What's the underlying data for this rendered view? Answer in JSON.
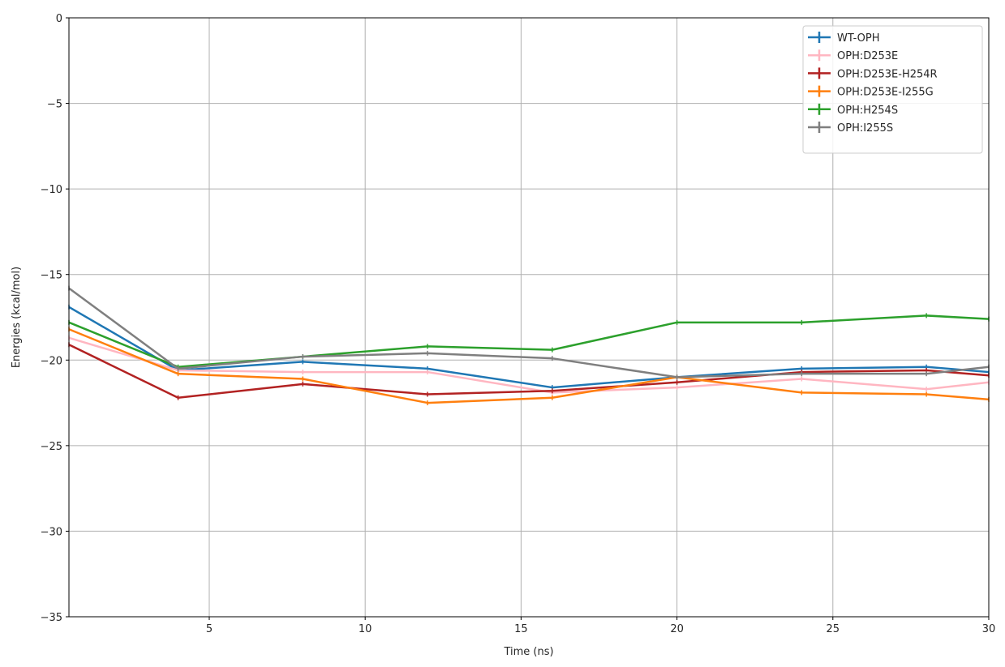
{
  "chart_data": {
    "type": "line",
    "title": "",
    "xlabel": "Time (ns)",
    "ylabel": "Energies (kcal/mol)",
    "xlim": [
      0.5,
      30
    ],
    "ylim": [
      -35,
      0
    ],
    "xticks": [
      5,
      10,
      15,
      20,
      25,
      30
    ],
    "yticks": [
      0,
      -5,
      -10,
      -15,
      -20,
      -25,
      -30,
      -35
    ],
    "ytick_labels": [
      "0",
      "−5",
      "−10",
      "−15",
      "−20",
      "−25",
      "−30",
      "−35"
    ],
    "grid": true,
    "legend_position": "upper-right",
    "x": [
      0.5,
      4,
      8,
      12,
      16,
      20,
      24,
      28,
      30
    ],
    "series": [
      {
        "name": "WT-OPH",
        "color": "#1f77b4",
        "values": [
          -16.9,
          -20.6,
          -20.1,
          -20.5,
          -21.6,
          -21.0,
          -20.5,
          -20.4,
          -20.7
        ]
      },
      {
        "name": "OPH:D253E",
        "color": "#ffb6c1",
        "values": [
          -18.7,
          -20.6,
          -20.7,
          -20.7,
          -21.9,
          -21.6,
          -21.1,
          -21.7,
          -21.3
        ]
      },
      {
        "name": "OPH:D253E-H254R",
        "color": "#b22222",
        "values": [
          -19.1,
          -22.2,
          -21.4,
          -22.0,
          -21.8,
          -21.3,
          -20.7,
          -20.6,
          -20.9
        ]
      },
      {
        "name": "OPH:D253E-I255G",
        "color": "#ff7f0e",
        "values": [
          -18.2,
          -20.8,
          -21.1,
          -22.5,
          -22.2,
          -21.0,
          -21.9,
          -22.0,
          -22.3
        ]
      },
      {
        "name": "OPH:H254S",
        "color": "#2ca02c",
        "values": [
          -17.8,
          -20.4,
          -19.8,
          -19.2,
          -19.4,
          -17.8,
          -17.8,
          -17.4,
          -17.6
        ]
      },
      {
        "name": "OPH:I255S",
        "color": "#7f7f7f",
        "values": [
          -15.8,
          -20.5,
          -19.8,
          -19.6,
          -19.9,
          -21.0,
          -20.8,
          -20.8,
          -20.4
        ]
      }
    ]
  }
}
